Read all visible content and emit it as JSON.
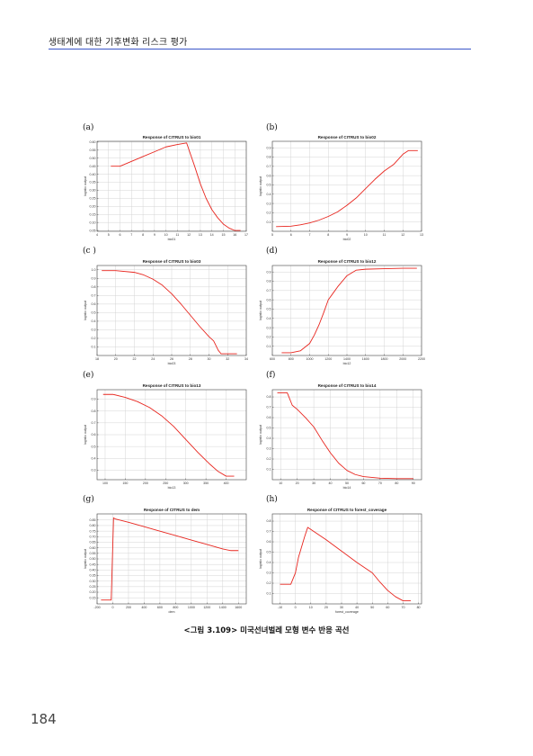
{
  "header": {
    "title": "생태계에 대한 기후변화 리스크 평가"
  },
  "caption": "<그림 3.109> 미국선녀벌레 모형 변수 반응 곡선",
  "page_number": "184",
  "panels": [
    {
      "letter": "(a)"
    },
    {
      "letter": "(b)"
    },
    {
      "letter": "(c )"
    },
    {
      "letter": "(d)"
    },
    {
      "letter": "(e)"
    },
    {
      "letter": "(f)"
    },
    {
      "letter": "(g)"
    },
    {
      "letter": "(h)"
    }
  ],
  "chart_data": [
    {
      "type": "line",
      "title": "Response of CITRUS to bio01",
      "xlabel": "bio01",
      "ylabel": "logistic output",
      "xlim": [
        4,
        17
      ],
      "ylim": [
        0.045,
        0.605
      ],
      "xticks": [
        4,
        5,
        6,
        7,
        8,
        9,
        10,
        11,
        12,
        13,
        14,
        15,
        16,
        17
      ],
      "yticks": [
        0.05,
        0.1,
        0.15,
        0.2,
        0.25,
        0.3,
        0.35,
        0.4,
        0.45,
        0.5,
        0.55,
        0.6
      ],
      "ytick_labels": [
        "0.05",
        "0.10",
        "0.15",
        "0.20",
        "0.25",
        "0.30",
        "0.35",
        "0.40",
        "0.45",
        "0.50",
        "0.55",
        "0.60"
      ],
      "series": [
        {
          "color": "#e8261f",
          "x": [
            5.2,
            6.0,
            7,
            8,
            9,
            10,
            11,
            11.8,
            12.5,
            13,
            13.5,
            14,
            14.5,
            15,
            15.5,
            16,
            16.5
          ],
          "y": [
            0.45,
            0.45,
            0.48,
            0.51,
            0.54,
            0.57,
            0.585,
            0.595,
            0.45,
            0.34,
            0.25,
            0.18,
            0.13,
            0.09,
            0.065,
            0.05,
            0.05
          ]
        }
      ]
    },
    {
      "type": "line",
      "title": "Response of CITRUS to bio02",
      "xlabel": "bio02",
      "ylabel": "logistic output",
      "xlim": [
        5,
        13
      ],
      "ylim": [
        0,
        0.97
      ],
      "xticks": [
        5,
        6,
        7,
        8,
        9,
        10,
        11,
        12,
        13
      ],
      "yticks": [
        0.1,
        0.2,
        0.3,
        0.4,
        0.5,
        0.6,
        0.7,
        0.8,
        0.9
      ],
      "ytick_labels": [
        "0.1",
        "0.2",
        "0.3",
        "0.4",
        "0.5",
        "0.6",
        "0.7",
        "0.8",
        "0.9"
      ],
      "series": [
        {
          "color": "#e8261f",
          "x": [
            5.2,
            6.0,
            6.5,
            7,
            7.5,
            8,
            8.5,
            9,
            9.5,
            10,
            10.5,
            11,
            11.5,
            12,
            12.3,
            12.8
          ],
          "y": [
            0.05,
            0.055,
            0.07,
            0.09,
            0.12,
            0.16,
            0.21,
            0.28,
            0.36,
            0.46,
            0.56,
            0.65,
            0.72,
            0.83,
            0.87,
            0.87
          ]
        }
      ]
    },
    {
      "type": "line",
      "title": "Response of CITRUS to bio03",
      "xlabel": "bio03",
      "ylabel": "logistic output",
      "xlim": [
        18,
        34
      ],
      "ylim": [
        0,
        1.05
      ],
      "xticks": [
        18,
        20,
        22,
        24,
        26,
        28,
        30,
        32,
        34
      ],
      "yticks": [
        0.1,
        0.2,
        0.3,
        0.4,
        0.5,
        0.6,
        0.7,
        0.8,
        0.9,
        1.0
      ],
      "ytick_labels": [
        "0.1",
        "0.2",
        "0.3",
        "0.4",
        "0.5",
        "0.6",
        "0.7",
        "0.8",
        "0.9",
        "1.0"
      ],
      "series": [
        {
          "color": "#e8261f",
          "x": [
            18.5,
            20,
            22,
            23,
            24,
            25,
            26,
            27,
            28,
            29,
            30,
            30.5,
            31,
            31.3,
            32,
            33
          ],
          "y": [
            0.99,
            0.99,
            0.97,
            0.94,
            0.89,
            0.82,
            0.72,
            0.6,
            0.47,
            0.34,
            0.22,
            0.17,
            0.06,
            0.02,
            0.02,
            0.02
          ]
        }
      ]
    },
    {
      "type": "line",
      "title": "Response of CITRUS to bio12",
      "xlabel": "bio12",
      "ylabel": "logistic output",
      "xlim": [
        600,
        2200
      ],
      "ylim": [
        0,
        0.97
      ],
      "xticks": [
        600,
        800,
        1000,
        1200,
        1400,
        1600,
        1800,
        2000,
        2200
      ],
      "yticks": [
        0.1,
        0.2,
        0.3,
        0.4,
        0.5,
        0.6,
        0.7,
        0.8,
        0.9
      ],
      "ytick_labels": [
        "0.1",
        "0.2",
        "0.3",
        "0.4",
        "0.5",
        "0.6",
        "0.7",
        "0.8",
        "0.9"
      ],
      "series": [
        {
          "color": "#e8261f",
          "x": [
            700,
            800,
            900,
            1000,
            1050,
            1100,
            1150,
            1200,
            1250,
            1300,
            1400,
            1500,
            1600,
            1800,
            2000,
            2150
          ],
          "y": [
            0.03,
            0.03,
            0.05,
            0.13,
            0.22,
            0.33,
            0.46,
            0.6,
            0.67,
            0.74,
            0.86,
            0.92,
            0.93,
            0.935,
            0.94,
            0.94
          ]
        }
      ]
    },
    {
      "type": "line",
      "title": "Response of CITRUS to bio13",
      "xlabel": "bio13",
      "ylabel": "logistic output",
      "xlim": [
        80,
        450
      ],
      "ylim": [
        0.22,
        0.98
      ],
      "xticks": [
        100,
        150,
        200,
        250,
        300,
        350,
        400
      ],
      "yticks": [
        0.3,
        0.4,
        0.5,
        0.6,
        0.7,
        0.8,
        0.9
      ],
      "ytick_labels": [
        "0.3",
        "0.4",
        "0.5",
        "0.6",
        "0.7",
        "0.8",
        "0.9"
      ],
      "series": [
        {
          "color": "#e8261f",
          "x": [
            95,
            120,
            150,
            180,
            210,
            240,
            270,
            300,
            330,
            360,
            380,
            400,
            420
          ],
          "y": [
            0.94,
            0.94,
            0.915,
            0.88,
            0.83,
            0.76,
            0.67,
            0.56,
            0.45,
            0.35,
            0.29,
            0.25,
            0.25
          ]
        }
      ]
    },
    {
      "type": "line",
      "title": "Response of CITRUS to bio14",
      "xlabel": "bio14",
      "ylabel": "logistic output",
      "xlim": [
        5,
        95
      ],
      "ylim": [
        0,
        0.87
      ],
      "xticks": [
        10,
        20,
        30,
        40,
        50,
        60,
        70,
        80,
        90
      ],
      "yticks": [
        0.1,
        0.2,
        0.3,
        0.4,
        0.5,
        0.6,
        0.7,
        0.8
      ],
      "ytick_labels": [
        "0.1",
        "0.2",
        "0.3",
        "0.4",
        "0.5",
        "0.6",
        "0.7",
        "0.8"
      ],
      "series": [
        {
          "color": "#e8261f",
          "x": [
            8,
            14,
            15,
            17,
            20,
            25,
            30,
            35,
            40,
            45,
            50,
            55,
            60,
            70,
            80,
            90
          ],
          "y": [
            0.84,
            0.84,
            0.8,
            0.72,
            0.68,
            0.6,
            0.51,
            0.38,
            0.26,
            0.16,
            0.09,
            0.05,
            0.03,
            0.015,
            0.01,
            0.01
          ]
        }
      ]
    },
    {
      "type": "line",
      "title": "Response of CITRUS to dem",
      "xlabel": "dem",
      "ylabel": "logistic output",
      "xlim": [
        -200,
        1700
      ],
      "ylim": [
        0.095,
        0.905
      ],
      "xticks": [
        -200,
        0,
        200,
        400,
        600,
        800,
        1000,
        1200,
        1400,
        1600
      ],
      "yticks": [
        0.15,
        0.2,
        0.25,
        0.3,
        0.35,
        0.4,
        0.45,
        0.5,
        0.55,
        0.6,
        0.65,
        0.7,
        0.75,
        0.8,
        0.85
      ],
      "ytick_labels": [
        "0.15",
        "0.20",
        "0.25",
        "0.30",
        "0.35",
        "0.40",
        "0.45",
        "0.50",
        "0.55",
        "0.60",
        "0.65",
        "0.70",
        "0.75",
        "0.80",
        "0.85"
      ],
      "series": [
        {
          "color": "#e8261f",
          "x": [
            -150,
            -20,
            -5,
            10,
            30,
            200,
            400,
            600,
            800,
            1000,
            1200,
            1400,
            1500,
            1600
          ],
          "y": [
            0.13,
            0.13,
            0.5,
            0.87,
            0.86,
            0.83,
            0.79,
            0.75,
            0.71,
            0.67,
            0.63,
            0.59,
            0.575,
            0.575
          ]
        }
      ]
    },
    {
      "type": "line",
      "title": "Response of CITRUS to forest_coverage",
      "xlabel": "forest_coverage",
      "ylabel": "logistic output",
      "xlim": [
        -15,
        82
      ],
      "ylim": [
        0,
        0.87
      ],
      "xticks": [
        -10,
        0,
        10,
        20,
        30,
        40,
        50,
        60,
        70,
        80
      ],
      "yticks": [
        0.1,
        0.2,
        0.3,
        0.4,
        0.5,
        0.6,
        0.7,
        0.8
      ],
      "ytick_labels": [
        "0.1",
        "0.2",
        "0.3",
        "0.4",
        "0.5",
        "0.6",
        "0.7",
        "0.8"
      ],
      "series": [
        {
          "color": "#e8261f",
          "x": [
            -10,
            -3,
            0,
            2,
            6,
            8,
            10,
            20,
            30,
            40,
            50,
            55,
            60,
            65,
            70,
            75
          ],
          "y": [
            0.19,
            0.19,
            0.3,
            0.45,
            0.65,
            0.74,
            0.72,
            0.62,
            0.51,
            0.4,
            0.3,
            0.21,
            0.13,
            0.07,
            0.03,
            0.03
          ]
        }
      ]
    }
  ]
}
